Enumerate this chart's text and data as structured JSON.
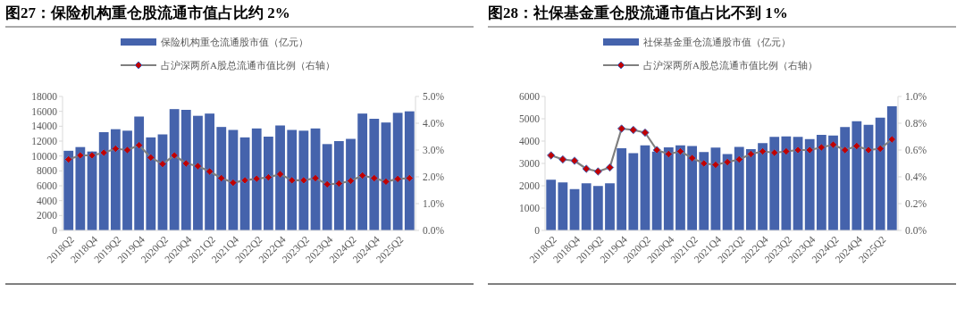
{
  "chart_data": [
    {
      "type": "bar",
      "title": "图27：保险机构重仓股流通市值占比约 2%",
      "categories": [
        "2018Q2",
        null,
        "2018Q4",
        null,
        "2019Q2",
        null,
        "2019Q4",
        null,
        "2020Q2",
        null,
        "2020Q4",
        null,
        "2021Q2",
        null,
        "2021Q4",
        null,
        "2022Q2",
        null,
        "2022Q4",
        null,
        "2023Q2",
        null,
        "2023Q4",
        null,
        "2024Q2",
        null,
        "2024Q4",
        null,
        "2025Q2",
        null
      ],
      "series": [
        {
          "name": "保险机构重仓流通股市值（亿元）",
          "color": "#4563ac",
          "values": [
            10700,
            11200,
            10600,
            13200,
            13600,
            13400,
            15300,
            12500,
            12900,
            16300,
            16200,
            15400,
            15700,
            13900,
            13500,
            12500,
            13700,
            12600,
            14100,
            13500,
            13400,
            13700,
            11600,
            12000,
            12300,
            15700,
            15000,
            14500,
            15800,
            16000
          ]
        },
        {
          "name": "占沪深两所A股总流通市值比例（右轴）",
          "type": "line",
          "axis": "y2",
          "color": "#7f7f7f",
          "values": [
            2.65,
            2.8,
            2.8,
            2.9,
            3.05,
            3.0,
            3.18,
            2.72,
            2.48,
            2.8,
            2.5,
            2.4,
            2.2,
            1.95,
            1.78,
            1.87,
            1.93,
            1.98,
            2.1,
            1.87,
            1.87,
            1.95,
            1.72,
            1.75,
            1.85,
            2.05,
            1.95,
            1.82,
            1.92,
            1.95
          ]
        }
      ],
      "ylim": [
        0,
        18000
      ],
      "yticks": [
        0,
        2000,
        4000,
        6000,
        8000,
        10000,
        12000,
        14000,
        16000,
        18000
      ],
      "y2lim": [
        0,
        5
      ],
      "y2ticks": [
        {
          "value": 0,
          "label": "0.0%"
        },
        {
          "value": 1,
          "label": "1.0%"
        },
        {
          "value": 2,
          "label": "2.0%"
        },
        {
          "value": 3,
          "label": "3.0%"
        },
        {
          "value": 4,
          "label": "4.0%"
        },
        {
          "value": 5,
          "label": "5.0%"
        }
      ],
      "marker": "diamond",
      "legend": "top"
    },
    {
      "type": "bar",
      "title": "图28：社保基金重仓股流通市值占比不到 1%",
      "categories": [
        "2018Q2",
        null,
        "2018Q4",
        null,
        "2019Q2",
        null,
        "2019Q4",
        null,
        "2020Q2",
        null,
        "2020Q4",
        null,
        "2021Q2",
        null,
        "2021Q4",
        null,
        "2022Q2",
        null,
        "2022Q4",
        null,
        "2023Q2",
        null,
        "2023Q4",
        null,
        "2024Q2",
        null,
        "2024Q4",
        null,
        "2025Q2",
        null
      ],
      "series": [
        {
          "name": "社保基金重仓流通股市值（亿元）",
          "color": "#4563ac",
          "values": [
            2270,
            2150,
            1850,
            2110,
            1990,
            2110,
            3680,
            3460,
            3810,
            3530,
            3720,
            3810,
            3780,
            3510,
            3710,
            3420,
            3740,
            3640,
            3910,
            4190,
            4210,
            4190,
            4090,
            4280,
            4250,
            4630,
            4890,
            4730,
            5050,
            5560
          ]
        },
        {
          "name": "占沪深两所A股总流通市值比例（右轴）",
          "type": "line",
          "axis": "y2",
          "color": "#7f7f7f",
          "values": [
            0.56,
            0.53,
            0.52,
            0.46,
            0.44,
            0.47,
            0.76,
            0.75,
            0.73,
            0.6,
            0.57,
            0.59,
            0.54,
            0.5,
            0.49,
            0.51,
            0.53,
            0.57,
            0.59,
            0.58,
            0.59,
            0.6,
            0.6,
            0.62,
            0.64,
            0.6,
            0.63,
            0.6,
            0.61,
            0.68
          ]
        }
      ],
      "ylim": [
        0,
        6000
      ],
      "yticks": [
        0,
        1000,
        2000,
        3000,
        4000,
        5000,
        6000
      ],
      "y2lim": [
        0,
        1
      ],
      "y2ticks": [
        {
          "value": 0,
          "label": "0.0%"
        },
        {
          "value": 0.2,
          "label": "0.2%"
        },
        {
          "value": 0.4,
          "label": "0.4%"
        },
        {
          "value": 0.6,
          "label": "0.6%"
        },
        {
          "value": 0.8,
          "label": "0.8%"
        },
        {
          "value": 1,
          "label": "1.0%"
        }
      ],
      "marker": "diamond",
      "legend": "top"
    }
  ]
}
